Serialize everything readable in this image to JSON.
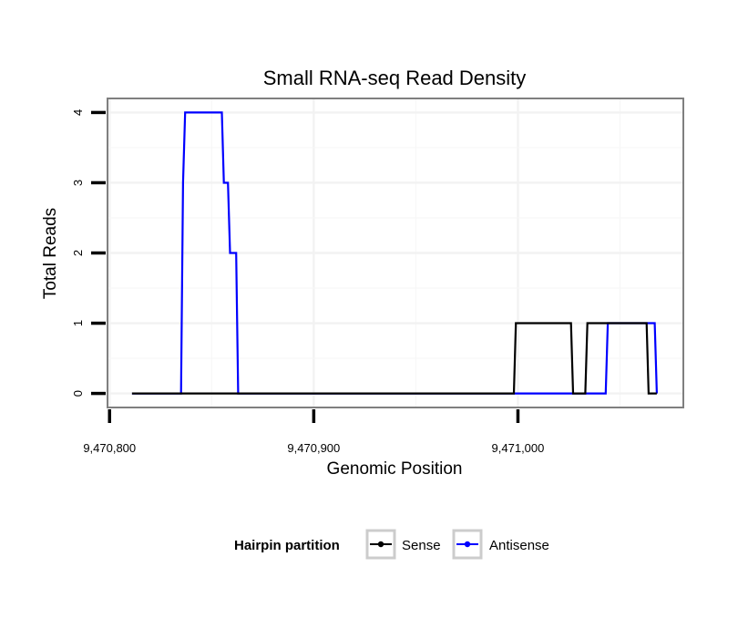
{
  "chart_data": {
    "type": "line",
    "title": "Small RNA-seq Read Density",
    "xlabel": "Genomic Position",
    "ylabel": "Total Reads",
    "xlim": [
      9470799,
      9471081
    ],
    "ylim": [
      -0.2,
      4.2
    ],
    "x_ticks": [
      {
        "value": 9470800,
        "label": "9,470,800"
      },
      {
        "value": 9470900,
        "label": "9,470,900"
      },
      {
        "value": 9471000,
        "label": "9,471,000"
      }
    ],
    "y_ticks": [
      {
        "value": 0,
        "label": "0"
      },
      {
        "value": 1,
        "label": "1"
      },
      {
        "value": 2,
        "label": "2"
      },
      {
        "value": 3,
        "label": "3"
      },
      {
        "value": 4,
        "label": "4"
      }
    ],
    "grid": true,
    "legend": {
      "title": "Hairpin partition",
      "position": "bottom"
    },
    "series": [
      {
        "name": "Sense",
        "color": "#000000",
        "x": [
          9470811,
          9470998,
          9470999,
          9471026,
          9471027,
          9471033,
          9471034,
          9471063,
          9471064,
          9471068
        ],
        "y": [
          0,
          0,
          1,
          1,
          0,
          0,
          1,
          1,
          0,
          0
        ]
      },
      {
        "name": "Antisense",
        "color": "#0000ff",
        "x": [
          9470811,
          9470835,
          9470836,
          9470837,
          9470855,
          9470856,
          9470858,
          9470859,
          9470862,
          9470863,
          9471043,
          9471044,
          9471067,
          9471068
        ],
        "y": [
          0,
          0,
          3,
          4,
          4,
          3,
          3,
          2,
          2,
          0,
          0,
          1,
          1,
          0
        ]
      }
    ]
  }
}
